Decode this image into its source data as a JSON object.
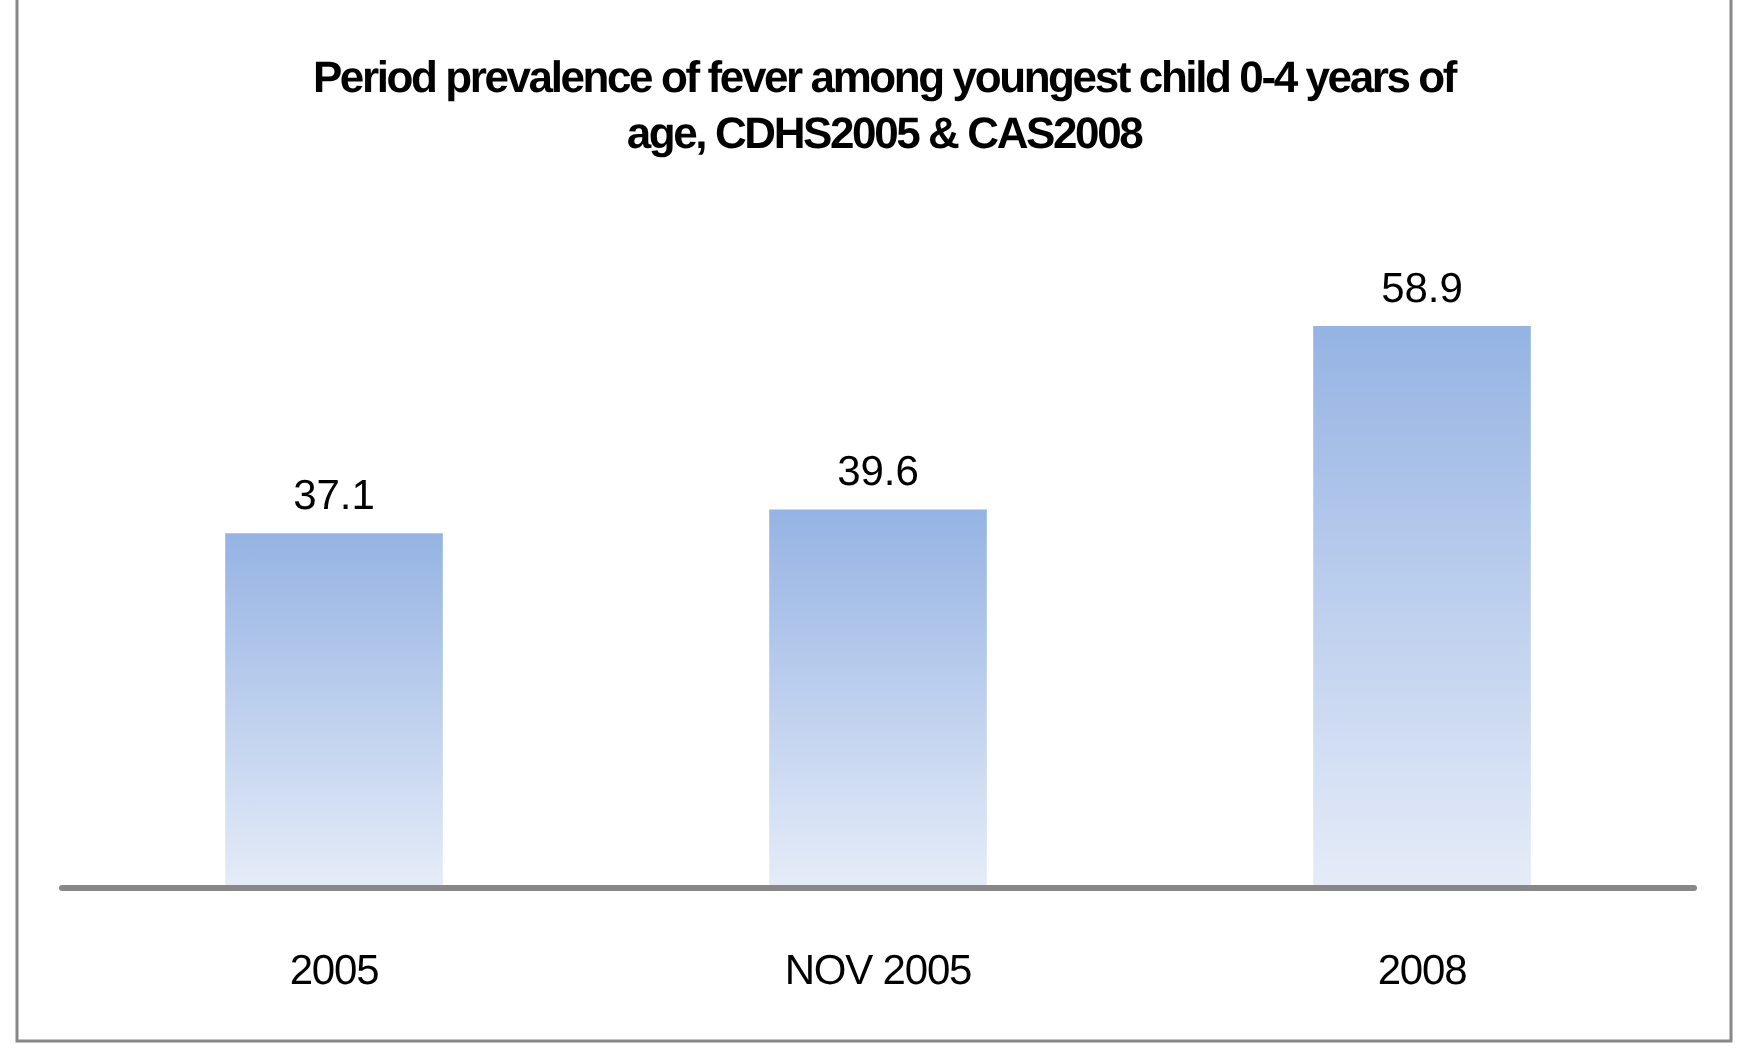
{
  "chart_data": {
    "type": "bar",
    "title": "Period prevalence of fever among youngest child 0-4 years of age, CDHS2005 & CAS2008",
    "categories": [
      "2005",
      "NOV 2005",
      "2008"
    ],
    "values": [
      37.1,
      39.6,
      58.9
    ],
    "color": "#95b3e3",
    "data_labels": true
  }
}
